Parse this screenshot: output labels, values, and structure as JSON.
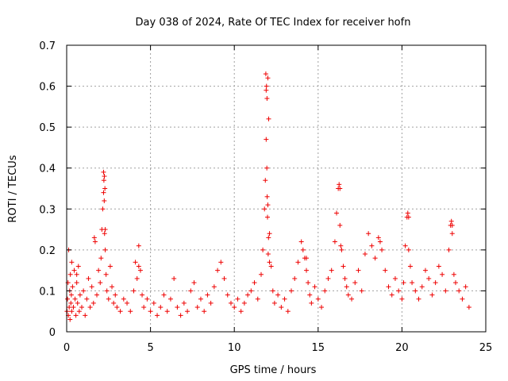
{
  "chart_data": {
    "type": "scatter",
    "title": "Day 038 of 2024, Rate Of TEC Index for receiver hofn",
    "xlabel": "GPS time / hours",
    "ylabel": "ROTI / TECUs",
    "xlim": [
      0,
      25
    ],
    "ylim": [
      0,
      0.7
    ],
    "xticks": [
      0,
      5,
      10,
      15,
      20,
      25
    ],
    "xtick_labels": [
      "0",
      "5",
      "10",
      "15",
      "20",
      "25"
    ],
    "yticks": [
      0,
      0.1,
      0.2,
      0.3,
      0.4,
      0.5,
      0.6,
      0.7
    ],
    "ytick_labels": [
      "0",
      "0.1",
      "0.2",
      "0.3",
      "0.4",
      "0.5",
      "0.6",
      "0.7"
    ],
    "grid": true,
    "marker": "+",
    "color": "#ee0000",
    "series": [
      {
        "name": "ROTI",
        "x": [
          0.02,
          0.05,
          0.08,
          0.1,
          0.12,
          0.15,
          0.18,
          0.2,
          0.22,
          0.25,
          0.28,
          0.3,
          0.35,
          0.4,
          0.45,
          0.5,
          0.55,
          0.6,
          0.65,
          0.7,
          0.75,
          0.8,
          0.9,
          1.0,
          1.1,
          1.2,
          1.3,
          1.4,
          1.5,
          1.6,
          1.7,
          1.8,
          1.9,
          2.0,
          2.05,
          2.1,
          2.15,
          2.2,
          2.25,
          2.3,
          2.35,
          2.4,
          2.5,
          2.6,
          2.7,
          2.8,
          2.9,
          3.0,
          3.2,
          3.4,
          3.6,
          3.8,
          4.0,
          4.1,
          4.2,
          4.3,
          4.4,
          4.5,
          4.6,
          4.8,
          5.0,
          5.2,
          5.4,
          5.6,
          5.8,
          6.0,
          6.2,
          6.4,
          6.6,
          6.8,
          7.0,
          7.2,
          7.4,
          7.6,
          7.8,
          8.0,
          8.2,
          8.4,
          8.6,
          8.8,
          9.0,
          9.2,
          9.4,
          9.6,
          9.8,
          10.0,
          10.2,
          10.4,
          10.6,
          10.8,
          11.0,
          11.2,
          11.4,
          11.6,
          11.7,
          11.8,
          11.85,
          11.9,
          11.95,
          12.0,
          12.05,
          12.1,
          12.2,
          12.3,
          12.4,
          12.6,
          12.8,
          13.0,
          13.2,
          13.4,
          13.6,
          13.8,
          14.0,
          14.1,
          14.2,
          14.3,
          14.4,
          14.5,
          14.6,
          14.8,
          15.0,
          15.2,
          15.4,
          15.6,
          15.8,
          16.0,
          16.1,
          16.2,
          16.3,
          16.4,
          16.5,
          16.6,
          16.7,
          16.8,
          17.0,
          17.2,
          17.4,
          17.6,
          17.8,
          18.0,
          18.2,
          18.4,
          18.6,
          18.8,
          19.0,
          19.2,
          19.4,
          19.6,
          19.8,
          20.0,
          20.1,
          20.2,
          20.3,
          20.4,
          20.5,
          20.6,
          20.8,
          21.0,
          21.2,
          21.4,
          21.6,
          21.8,
          22.0,
          22.2,
          22.4,
          22.6,
          22.8,
          22.9,
          23.0,
          23.1,
          23.2,
          23.4,
          23.6,
          23.8,
          24.0,
          2.2,
          2.22,
          2.24,
          2.26,
          2.28,
          2.3,
          11.88,
          11.9,
          11.92,
          11.94,
          11.96,
          11.98,
          12.0,
          12.02,
          12.04,
          16.25,
          16.3,
          16.35,
          20.35,
          20.4,
          22.95,
          23.0,
          4.3,
          12.1,
          14.3,
          18.7,
          1.65,
          0.3,
          0.6
        ],
        "y": [
          0.05,
          0.08,
          0.12,
          0.04,
          0.2,
          0.06,
          0.1,
          0.03,
          0.14,
          0.07,
          0.09,
          0.05,
          0.11,
          0.06,
          0.15,
          0.08,
          0.04,
          0.12,
          0.07,
          0.16,
          0.05,
          0.09,
          0.06,
          0.1,
          0.04,
          0.08,
          0.13,
          0.06,
          0.11,
          0.07,
          0.22,
          0.09,
          0.15,
          0.12,
          0.18,
          0.25,
          0.3,
          0.34,
          0.38,
          0.2,
          0.14,
          0.1,
          0.08,
          0.16,
          0.11,
          0.07,
          0.09,
          0.06,
          0.05,
          0.08,
          0.07,
          0.05,
          0.1,
          0.17,
          0.13,
          0.21,
          0.15,
          0.09,
          0.06,
          0.08,
          0.05,
          0.07,
          0.04,
          0.06,
          0.09,
          0.05,
          0.08,
          0.13,
          0.06,
          0.04,
          0.07,
          0.05,
          0.1,
          0.12,
          0.06,
          0.08,
          0.05,
          0.09,
          0.07,
          0.11,
          0.15,
          0.17,
          0.13,
          0.09,
          0.07,
          0.06,
          0.08,
          0.05,
          0.07,
          0.09,
          0.1,
          0.12,
          0.08,
          0.14,
          0.2,
          0.3,
          0.37,
          0.47,
          0.57,
          0.62,
          0.52,
          0.24,
          0.16,
          0.1,
          0.07,
          0.09,
          0.06,
          0.08,
          0.05,
          0.1,
          0.13,
          0.17,
          0.22,
          0.2,
          0.18,
          0.15,
          0.12,
          0.09,
          0.07,
          0.11,
          0.08,
          0.06,
          0.1,
          0.13,
          0.15,
          0.22,
          0.29,
          0.35,
          0.26,
          0.2,
          0.16,
          0.13,
          0.11,
          0.09,
          0.08,
          0.12,
          0.15,
          0.1,
          0.19,
          0.24,
          0.21,
          0.18,
          0.23,
          0.2,
          0.15,
          0.11,
          0.09,
          0.13,
          0.1,
          0.08,
          0.12,
          0.21,
          0.28,
          0.2,
          0.16,
          0.12,
          0.1,
          0.08,
          0.11,
          0.15,
          0.13,
          0.09,
          0.12,
          0.16,
          0.14,
          0.1,
          0.2,
          0.26,
          0.24,
          0.14,
          0.12,
          0.1,
          0.08,
          0.11,
          0.06,
          0.39,
          0.37,
          0.32,
          0.24,
          0.35,
          0.25,
          0.63,
          0.59,
          0.6,
          0.4,
          0.33,
          0.28,
          0.31,
          0.19,
          0.23,
          0.36,
          0.35,
          0.21,
          0.29,
          0.28,
          0.27,
          0.26,
          0.16,
          0.17,
          0.18,
          0.22,
          0.23,
          0.17,
          0.14
        ]
      }
    ]
  }
}
